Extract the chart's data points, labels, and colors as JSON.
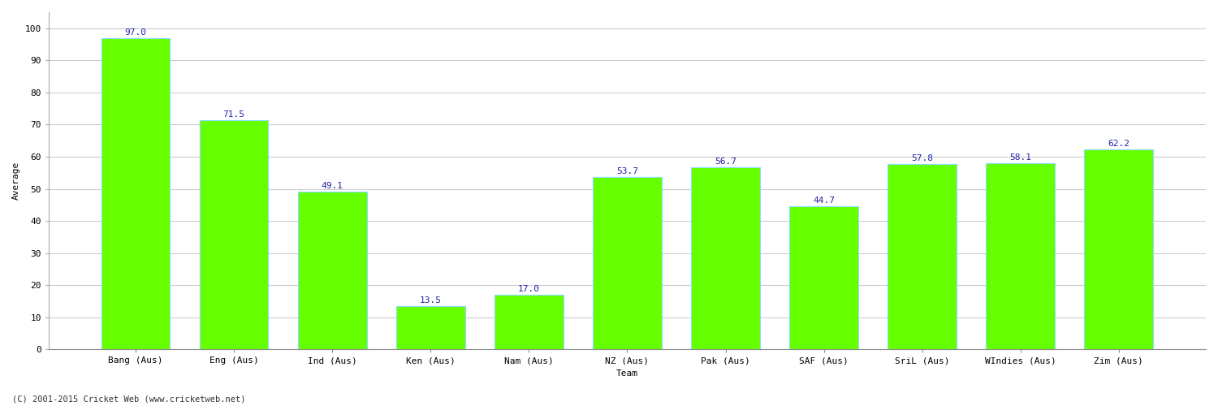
{
  "categories": [
    "Bang (Aus)",
    "Eng (Aus)",
    "Ind (Aus)",
    "Ken (Aus)",
    "Nam (Aus)",
    "NZ (Aus)",
    "Pak (Aus)",
    "SAF (Aus)",
    "SriL (Aus)",
    "WIndies (Aus)",
    "Zim (Aus)"
  ],
  "values": [
    97.0,
    71.5,
    49.1,
    13.5,
    17.0,
    53.7,
    56.7,
    44.7,
    57.8,
    58.1,
    62.2
  ],
  "bar_color": "#66ff00",
  "bar_edge_color": "#88ddff",
  "label_color": "#2222aa",
  "xlabel": "Team",
  "ylabel": "Average",
  "ylim": [
    0,
    105
  ],
  "yticks": [
    0,
    10,
    20,
    30,
    40,
    50,
    60,
    70,
    80,
    90,
    100
  ],
  "grid_color": "#cccccc",
  "background_color": "#ffffff",
  "label_fontsize": 8,
  "axis_label_fontsize": 8,
  "tick_fontsize": 8,
  "footer_text": "(C) 2001-2015 Cricket Web (www.cricketweb.net)",
  "bar_width": 0.7
}
